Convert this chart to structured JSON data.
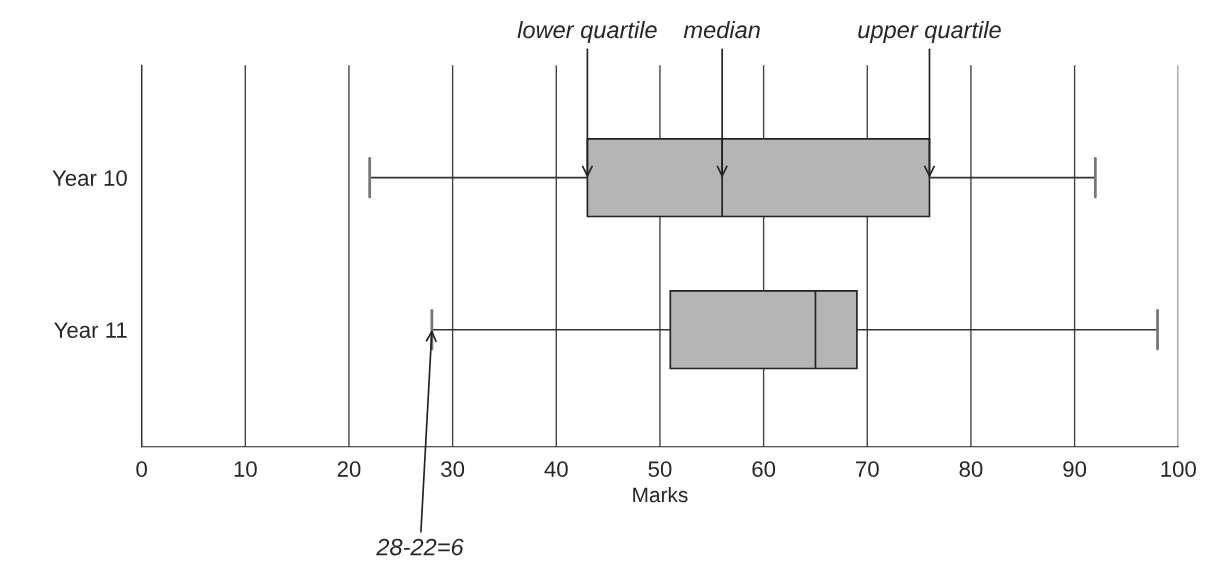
{
  "chart_data": {
    "type": "box",
    "orientation": "horizontal",
    "xlabel": "Marks",
    "categories": [
      "Year 10",
      "Year 11"
    ],
    "series": [
      {
        "color": "#b5b5b5",
        "boxes": [
          {
            "low": 22,
            "q1": 43,
            "median": 56,
            "q3": 76,
            "high": 92
          },
          {
            "low": 28,
            "q1": 51,
            "median": 65,
            "q3": 69,
            "high": 98
          }
        ]
      }
    ],
    "xlim": [
      0,
      100
    ],
    "xticks": [
      0,
      10,
      20,
      30,
      40,
      50,
      60,
      70,
      80,
      90,
      100
    ],
    "grid": "x",
    "annotations": [
      {
        "text": "lower quartile",
        "x": 43,
        "y": "Year 10"
      },
      {
        "text": "median",
        "x": 56,
        "y": "Year 10"
      },
      {
        "text": "upper quartile",
        "x": 76,
        "y": "Year 10"
      },
      {
        "text": "28-22=6",
        "x": 28,
        "y": "Year 11"
      }
    ]
  }
}
